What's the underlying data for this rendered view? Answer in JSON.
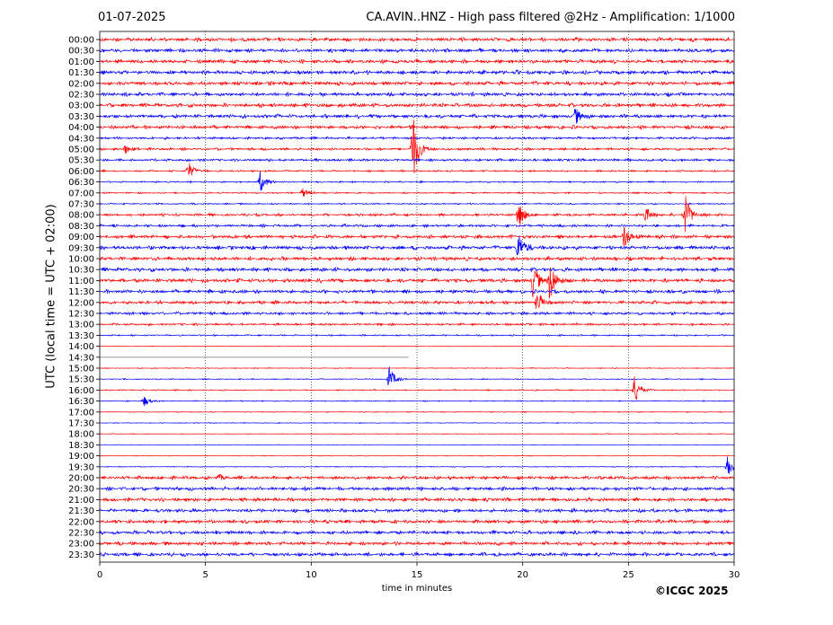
{
  "header": {
    "date": "01-07-2025",
    "title": "CA.AVIN..HNZ - High pass filtered @2Hz - Amplification: 1/1000"
  },
  "footer": {
    "copyright": "©ICGC 2025"
  },
  "chart_data": {
    "type": "line",
    "title": "CA.AVIN..HNZ - High pass filtered @2Hz - Amplification: 1/1000",
    "xlabel": "time in minutes",
    "ylabel": "UTC (local time = UTC + 02:00)",
    "xlim": [
      0,
      30
    ],
    "xticks": [
      0,
      5,
      10,
      15,
      20,
      25,
      30
    ],
    "grid": "vertical dotted lines every 5 minutes",
    "row_labels": [
      "00:00",
      "00:30",
      "01:00",
      "01:30",
      "02:00",
      "02:30",
      "03:00",
      "03:30",
      "04:00",
      "04:30",
      "05:00",
      "05:30",
      "06:00",
      "06:30",
      "07:00",
      "07:30",
      "08:00",
      "08:30",
      "09:00",
      "09:30",
      "10:00",
      "10:30",
      "11:00",
      "11:30",
      "12:00",
      "12:30",
      "13:00",
      "13:30",
      "14:00",
      "14:30",
      "15:00",
      "15:30",
      "16:00",
      "16:30",
      "17:00",
      "17:30",
      "18:00",
      "18:30",
      "19:00",
      "19:30",
      "20:00",
      "20:30",
      "21:00",
      "21:30",
      "22:00",
      "22:30",
      "23:00",
      "23:30"
    ],
    "colors": {
      "even_rows": "#ff0000",
      "odd_rows": "#0000ff",
      "data_gap_line": "#888888"
    },
    "trace_noise_level": [
      2.5,
      2.5,
      2.5,
      2.6,
      2.6,
      2.5,
      2.6,
      2.5,
      2.4,
      1.6,
      1.7,
      1.7,
      1.2,
      1.0,
      1.0,
      1.0,
      1.7,
      1.8,
      2.4,
      2.6,
      2.6,
      2.6,
      2.6,
      2.4,
      2.2,
      2.0,
      1.5,
      1.0,
      0.4,
      0.0,
      0.6,
      0.7,
      0.8,
      0.7,
      0.6,
      0.5,
      0.5,
      0.4,
      0.5,
      0.6,
      2.2,
      2.4,
      2.4,
      2.4,
      2.4,
      2.4,
      2.4,
      2.4
    ],
    "data_gap": {
      "row": "14:30",
      "from_minute": 0,
      "to_minute": 14.6
    },
    "events": [
      {
        "row": "03:30",
        "minute": 22.5,
        "amplitude": 9
      },
      {
        "row": "05:00",
        "minute": 14.8,
        "amplitude": 40
      },
      {
        "row": "05:00",
        "minute": 1.2,
        "amplitude": 5
      },
      {
        "row": "06:00",
        "minute": 4.2,
        "amplitude": 10
      },
      {
        "row": "06:30",
        "minute": 7.6,
        "amplitude": 12
      },
      {
        "row": "07:00",
        "minute": 9.6,
        "amplitude": 5
      },
      {
        "row": "08:00",
        "minute": 19.8,
        "amplitude": 16
      },
      {
        "row": "08:00",
        "minute": 25.8,
        "amplitude": 9
      },
      {
        "row": "08:00",
        "minute": 27.7,
        "amplitude": 22
      },
      {
        "row": "09:00",
        "minute": 24.8,
        "amplitude": 12
      },
      {
        "row": "09:30",
        "minute": 19.8,
        "amplitude": 18
      },
      {
        "row": "11:00",
        "minute": 20.5,
        "amplitude": 20
      },
      {
        "row": "11:00",
        "minute": 21.3,
        "amplitude": 24
      },
      {
        "row": "12:00",
        "minute": 20.7,
        "amplitude": 12
      },
      {
        "row": "15:30",
        "minute": 13.7,
        "amplitude": 14
      },
      {
        "row": "16:00",
        "minute": 25.3,
        "amplitude": 16
      },
      {
        "row": "16:30",
        "minute": 2.1,
        "amplitude": 6
      },
      {
        "row": "19:30",
        "minute": 29.7,
        "amplitude": 12
      },
      {
        "row": "20:00",
        "minute": 5.6,
        "amplitude": 3
      }
    ]
  }
}
